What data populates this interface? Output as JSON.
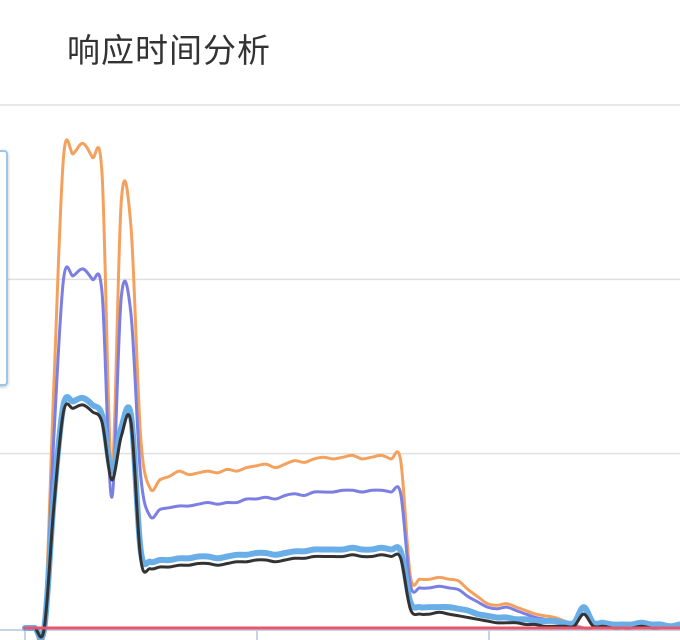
{
  "title": "响应时间分析",
  "chart_data": {
    "type": "line",
    "title": "响应时间分析",
    "xlabel": "",
    "ylabel": "",
    "x": [
      0,
      1,
      2,
      3,
      4,
      5,
      6,
      7,
      8,
      9,
      10,
      11,
      12,
      13,
      14,
      15,
      16,
      17,
      18,
      19,
      20,
      21,
      22,
      23,
      24,
      25,
      26,
      27,
      28,
      29,
      30,
      31,
      32,
      33,
      34,
      35,
      36,
      37,
      38,
      39,
      40,
      41,
      42,
      43,
      44,
      45,
      46,
      47,
      48,
      49,
      50,
      51,
      52,
      53,
      54,
      55,
      56,
      57,
      58,
      59,
      60,
      61,
      62,
      63,
      64,
      65,
      66,
      67,
      68
    ],
    "ylim": [
      0,
      300
    ],
    "xlim": [
      0,
      68
    ],
    "grid": true,
    "legend": "left",
    "series": [
      {
        "color": "#f4a15d",
        "values": [
          0,
          0,
          0,
          140,
          270,
          272,
          278,
          270,
          260,
          90,
          245,
          230,
          110,
          80,
          85,
          87,
          90,
          88,
          89,
          90,
          89,
          91,
          90,
          92,
          93,
          94,
          92,
          94,
          96,
          95,
          97,
          98,
          97,
          98,
          99,
          97,
          98,
          99,
          97,
          96,
          30,
          28,
          28,
          29,
          28,
          27,
          22,
          18,
          14,
          13,
          14,
          12,
          10,
          8,
          7,
          6,
          4,
          2,
          0,
          0,
          0,
          0,
          0,
          0,
          0,
          0,
          0,
          0,
          0
        ]
      },
      {
        "color": "#7b7fe3",
        "values": [
          0,
          0,
          0,
          110,
          200,
          202,
          206,
          200,
          192,
          75,
          190,
          180,
          88,
          64,
          68,
          69,
          70,
          70,
          71,
          72,
          71,
          72,
          72,
          74,
          74,
          75,
          74,
          76,
          77,
          76,
          78,
          78,
          78,
          79,
          79,
          78,
          79,
          79,
          78,
          77,
          25,
          23,
          23,
          24,
          23,
          22,
          18,
          15,
          12,
          11,
          12,
          10,
          8,
          6,
          5,
          4,
          3,
          1,
          0,
          0,
          0,
          0,
          0,
          0,
          0,
          0,
          0,
          0,
          0
        ]
      },
      {
        "color": "#6aaee8",
        "values": [
          0,
          0,
          0,
          75,
          128,
          130,
          132,
          128,
          122,
          90,
          115,
          122,
          45,
          38,
          39,
          39,
          40,
          40,
          41,
          41,
          40,
          41,
          42,
          42,
          43,
          43,
          42,
          43,
          44,
          44,
          45,
          45,
          45,
          45,
          46,
          45,
          45,
          46,
          45,
          44,
          15,
          12,
          12,
          12,
          12,
          11,
          10,
          8,
          7,
          6,
          6,
          5,
          5,
          4,
          4,
          4,
          3,
          3,
          12,
          3,
          3,
          2,
          2,
          2,
          3,
          2,
          2,
          1,
          2
        ]
      },
      {
        "color": "#333333",
        "values": [
          0,
          0,
          0,
          70,
          124,
          126,
          128,
          124,
          118,
          85,
          110,
          118,
          40,
          34,
          35,
          35,
          36,
          36,
          37,
          37,
          36,
          37,
          38,
          38,
          39,
          39,
          38,
          39,
          40,
          40,
          41,
          41,
          41,
          41,
          42,
          41,
          41,
          42,
          41,
          40,
          11,
          8,
          8,
          9,
          8,
          7,
          6,
          5,
          4,
          3,
          3,
          3,
          2,
          2,
          1,
          1,
          1,
          1,
          8,
          1,
          1,
          0,
          0,
          0,
          1,
          0,
          0,
          0,
          0
        ]
      },
      {
        "color": "#e8566b",
        "values": [
          0,
          0,
          0,
          0,
          0,
          0,
          0,
          0,
          0,
          0,
          0,
          0,
          0,
          0,
          0,
          0,
          0,
          0,
          0,
          0,
          0,
          0,
          0,
          0,
          0,
          0,
          0,
          0,
          0,
          0,
          0,
          0,
          0,
          0,
          0,
          0,
          0,
          0,
          0,
          0,
          0,
          0,
          0,
          0,
          0,
          0,
          0,
          0,
          0,
          0,
          0,
          0,
          0,
          0,
          0,
          0,
          0,
          0,
          0,
          0,
          0,
          0,
          0,
          0,
          0,
          0,
          0,
          0,
          0
        ]
      }
    ]
  }
}
